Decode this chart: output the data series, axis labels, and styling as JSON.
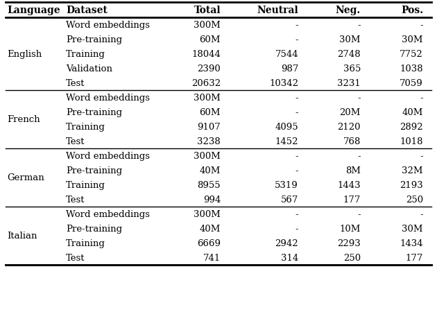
{
  "headers": [
    "Language",
    "Dataset",
    "Total",
    "Neutral",
    "Neg.",
    "Pos."
  ],
  "sections": [
    {
      "language": "English",
      "rows": [
        [
          "Word embeddings",
          "300M",
          "-",
          "-",
          "-"
        ],
        [
          "Pre-training",
          "60M",
          "-",
          "30M",
          "30M"
        ],
        [
          "Training",
          "18044",
          "7544",
          "2748",
          "7752"
        ],
        [
          "Validation",
          "2390",
          "987",
          "365",
          "1038"
        ],
        [
          "Test",
          "20632",
          "10342",
          "3231",
          "7059"
        ]
      ]
    },
    {
      "language": "French",
      "rows": [
        [
          "Word embeddings",
          "300M",
          "-",
          "-",
          "-"
        ],
        [
          "Pre-training",
          "60M",
          "-",
          "20M",
          "40M"
        ],
        [
          "Training",
          "9107",
          "4095",
          "2120",
          "2892"
        ],
        [
          "Test",
          "3238",
          "1452",
          "768",
          "1018"
        ]
      ]
    },
    {
      "language": "German",
      "rows": [
        [
          "Word embeddings",
          "300M",
          "-",
          "-",
          "-"
        ],
        [
          "Pre-training",
          "40M",
          "-",
          "8M",
          "32M"
        ],
        [
          "Training",
          "8955",
          "5319",
          "1443",
          "2193"
        ],
        [
          "Test",
          "994",
          "567",
          "177",
          "250"
        ]
      ]
    },
    {
      "language": "Italian",
      "rows": [
        [
          "Word embeddings",
          "300M",
          "-",
          "-",
          "-"
        ],
        [
          "Pre-training",
          "40M",
          "-",
          "10M",
          "30M"
        ],
        [
          "Training",
          "6669",
          "2942",
          "2293",
          "1434"
        ],
        [
          "Test",
          "741",
          "314",
          "250",
          "177"
        ]
      ]
    }
  ],
  "header_fontsize": 10,
  "cell_fontsize": 9.5,
  "bg_color": "#ffffff",
  "text_color": "#000000",
  "line_color": "#000000",
  "thick_lw": 2.0,
  "thin_lw": 1.0
}
